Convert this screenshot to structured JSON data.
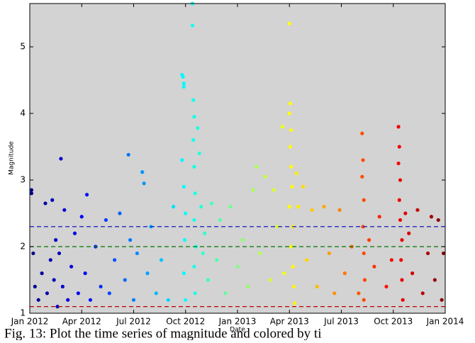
{
  "chart_data": {
    "type": "scatter",
    "xlabel": "Date",
    "ylabel": "Magnitude",
    "caption": "Fig. 13: Plot the time series of magnitude and colored by ti",
    "colormap": "jet",
    "xlim": [
      0,
      24
    ],
    "ylim": [
      1,
      5.65
    ],
    "xticks": [
      {
        "value": 0,
        "label": "Jan 2012"
      },
      {
        "value": 3,
        "label": "Apr 2012"
      },
      {
        "value": 6,
        "label": "Jul 2012"
      },
      {
        "value": 9,
        "label": "Oct 2012"
      },
      {
        "value": 12,
        "label": "Jan 2013"
      },
      {
        "value": 15,
        "label": "Apr 2013"
      },
      {
        "value": 18,
        "label": "Jul 2013"
      },
      {
        "value": 21,
        "label": "Oct 2013"
      },
      {
        "value": 24,
        "label": "Jan 2014"
      }
    ],
    "yticks": [
      1,
      2,
      3,
      4,
      5
    ],
    "background": "#d3d3d3",
    "hlines": [
      {
        "value": 2.3,
        "color": "#0000bb"
      },
      {
        "value": 2.0,
        "color": "#007700"
      },
      {
        "value": 1.1,
        "color": "#bb0000"
      }
    ],
    "x": [
      0.1,
      0.1,
      0.2,
      0.3,
      0.5,
      0.7,
      0.9,
      1.0,
      1.2,
      1.3,
      1.4,
      1.5,
      1.6,
      1.7,
      1.8,
      1.9,
      2.0,
      2.2,
      2.4,
      2.6,
      2.8,
      3.0,
      3.2,
      3.3,
      3.5,
      3.8,
      4.1,
      4.4,
      4.6,
      4.9,
      5.2,
      5.5,
      5.7,
      5.8,
      6.0,
      6.2,
      6.5,
      6.6,
      6.8,
      7.0,
      7.3,
      7.6,
      8.0,
      8.3,
      8.8,
      8.85,
      8.9,
      8.9,
      8.8,
      8.9,
      9.0,
      8.95,
      8.9,
      9.0,
      9.4,
      9.4,
      9.45,
      9.5,
      9.45,
      9.5,
      9.55,
      9.5,
      9.6,
      9.5,
      9.55,
      9.7,
      9.8,
      9.9,
      10.0,
      10.1,
      10.3,
      10.5,
      10.8,
      11.0,
      11.3,
      11.6,
      12.0,
      12.3,
      12.6,
      12.9,
      13.1,
      13.3,
      13.6,
      13.9,
      14.1,
      14.3,
      14.6,
      14.7,
      15.0,
      15.05,
      15.0,
      15.1,
      15.05,
      15.1,
      15.15,
      15.0,
      15.2,
      15.1,
      15.2,
      15.25,
      15.3,
      15.4,
      15.5,
      15.8,
      16.0,
      16.3,
      16.6,
      17.0,
      17.3,
      17.6,
      17.9,
      18.2,
      18.6,
      19.0,
      19.2,
      19.25,
      19.2,
      19.3,
      19.25,
      19.3,
      19.35,
      19.3,
      19.6,
      19.9,
      20.2,
      20.6,
      20.9,
      21.3,
      21.35,
      21.3,
      21.4,
      21.35,
      21.4,
      21.5,
      21.45,
      21.5,
      21.55,
      21.7,
      21.9,
      22.1,
      22.4,
      22.7,
      23.0,
      23.2,
      23.4,
      23.6,
      23.8,
      23.9
    ],
    "values": [
      2.85,
      2.8,
      1.9,
      1.4,
      1.2,
      1.6,
      2.65,
      1.3,
      1.8,
      2.7,
      1.5,
      2.1,
      1.1,
      1.9,
      3.32,
      1.4,
      2.55,
      1.2,
      1.7,
      2.2,
      1.3,
      2.45,
      1.6,
      2.78,
      1.2,
      2.0,
      1.4,
      2.4,
      1.3,
      1.8,
      2.5,
      1.5,
      3.38,
      2.1,
      1.2,
      1.9,
      3.12,
      2.95,
      1.6,
      2.3,
      1.3,
      1.8,
      1.2,
      2.6,
      4.58,
      4.55,
      4.45,
      4.4,
      3.3,
      2.9,
      2.5,
      2.1,
      1.6,
      1.2,
      5.65,
      5.32,
      4.2,
      3.95,
      3.6,
      3.2,
      2.8,
      2.4,
      2.0,
      1.7,
      1.3,
      3.78,
      3.4,
      2.6,
      1.9,
      2.2,
      1.5,
      2.65,
      1.8,
      2.4,
      1.3,
      2.6,
      1.7,
      2.1,
      1.4,
      2.85,
      3.2,
      1.9,
      3.05,
      1.5,
      2.85,
      2.3,
      3.8,
      1.6,
      5.35,
      4.15,
      4.0,
      3.75,
      3.5,
      3.2,
      2.9,
      2.6,
      2.3,
      2.0,
      1.7,
      1.4,
      1.15,
      3.1,
      2.6,
      2.9,
      1.8,
      2.55,
      1.4,
      2.6,
      1.9,
      1.3,
      2.55,
      1.6,
      2.0,
      1.3,
      3.7,
      3.3,
      3.05,
      2.7,
      2.3,
      1.9,
      1.5,
      1.2,
      2.1,
      1.7,
      2.45,
      1.4,
      1.8,
      3.8,
      3.5,
      3.25,
      3.0,
      2.7,
      2.4,
      2.1,
      1.8,
      1.5,
      1.2,
      2.5,
      2.2,
      1.6,
      2.55,
      1.3,
      1.9,
      2.45,
      1.5,
      2.4,
      1.2,
      1.9
    ]
  }
}
